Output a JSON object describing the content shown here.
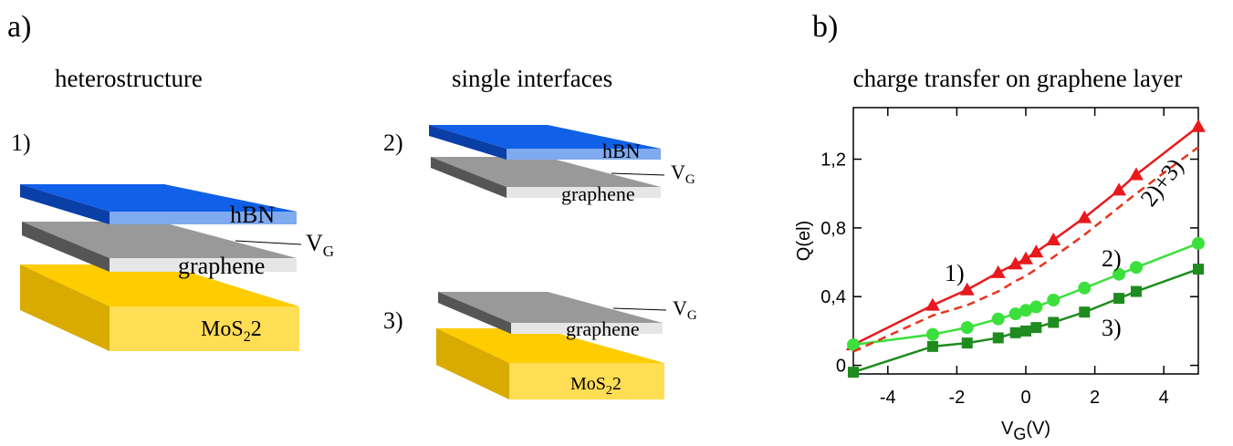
{
  "panel_a": {
    "label": "a)",
    "heterostructure": {
      "title": "heterostructure",
      "number": "1)",
      "hbn": "hBN",
      "graphene": "graphene",
      "vg": {
        "main": "V",
        "sub": "G"
      },
      "mos2": {
        "main": "MoS",
        "sub": "2",
        "tail": "2"
      }
    },
    "interfaces": {
      "title": "single interfaces",
      "top": {
        "number": "2)",
        "hbn": "hBN",
        "graphene": "graphene",
        "vg": {
          "main": "V",
          "sub": "G"
        }
      },
      "bottom": {
        "number": "3)",
        "graphene": "graphene",
        "vg": {
          "main": "V",
          "sub": "G"
        },
        "mos2": {
          "main": "MoS",
          "sub": "2",
          "tail": "2"
        }
      }
    }
  },
  "chart_data": {
    "type": "line",
    "label": "b)",
    "title": "charge transfer on graphene layer",
    "x_label": {
      "main": "V",
      "sub": "G",
      "tail": "(V)"
    },
    "y_label": "Q(el)",
    "x": [
      -5,
      -2.7,
      -1.7,
      -0.8,
      -0.3,
      0,
      0.3,
      0.8,
      1.7,
      2.7,
      3.2,
      5
    ],
    "xlim": [
      -5,
      5
    ],
    "xticks": [
      -4,
      -2,
      0,
      2,
      4
    ],
    "ylim": [
      -0.05,
      1.5
    ],
    "yticks": [
      0,
      {
        "value": 0.4,
        "label": "0,4"
      },
      {
        "value": 0.8,
        "label": "0,8"
      },
      {
        "value": 1.2,
        "label": "1,2"
      }
    ],
    "series": [
      {
        "name": "1)",
        "color": "#e8191c",
        "marker": "triangle",
        "values": [
          0.12,
          0.35,
          0.44,
          0.54,
          0.59,
          0.62,
          0.66,
          0.73,
          0.86,
          1.02,
          1.11,
          1.39
        ]
      },
      {
        "name": "2)",
        "color": "#3ce03c",
        "marker": "circle",
        "values": [
          0.12,
          0.18,
          0.22,
          0.27,
          0.3,
          0.32,
          0.34,
          0.38,
          0.45,
          0.53,
          0.57,
          0.71
        ]
      },
      {
        "name": "3)",
        "color": "#1e8c1e",
        "marker": "square",
        "values": [
          -0.04,
          0.11,
          0.13,
          0.16,
          0.19,
          0.2,
          0.22,
          0.25,
          0.31,
          0.39,
          0.43,
          0.56
        ]
      },
      {
        "name": "2)+3)",
        "color": "#e8341c",
        "dash": true,
        "values": [
          0.08,
          0.29,
          0.35,
          0.43,
          0.49,
          0.52,
          0.56,
          0.63,
          0.76,
          0.92,
          1.0,
          1.27
        ]
      }
    ]
  }
}
